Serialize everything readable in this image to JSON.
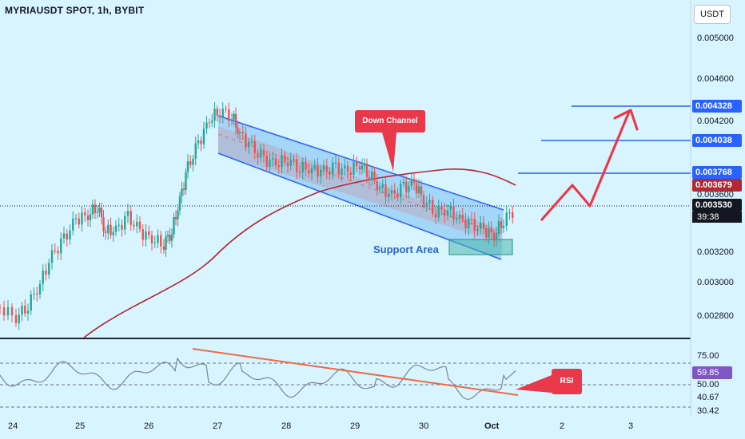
{
  "header": {
    "symbol_title": "MYRIAUSDT SPOT, 1h, BYBIT"
  },
  "price_axis": {
    "unit": "USDT",
    "ticks": [
      "0.005000",
      "0.004600",
      "0.004200",
      "0.003600",
      "0.003200",
      "0.003000",
      "0.002800"
    ],
    "current_price": "0.003530",
    "countdown": "39:38",
    "level_tags": [
      {
        "label": "0.004328",
        "color": "#2962ff"
      },
      {
        "label": "0.004038",
        "color": "#2962ff"
      },
      {
        "label": "0.003768",
        "color": "#2962ff"
      },
      {
        "label": "0.003679",
        "color": "#b22833"
      }
    ]
  },
  "rsi_axis": {
    "ticks": [
      "75.00",
      "50.00",
      "40.67",
      "30.42"
    ],
    "current_value": "59.85"
  },
  "time_axis": {
    "ticks": [
      "24",
      "25",
      "26",
      "27",
      "28",
      "29",
      "30",
      "Oct",
      "2",
      "3"
    ]
  },
  "annotations": {
    "down_channel": "Down Channel",
    "support_area": "Support Area",
    "rsi": "RSI"
  },
  "colors": {
    "background": "#d8f4ff",
    "candle_up": "#26a69a",
    "candle_down": "#ef5350",
    "channel_line": "#2962ff",
    "moving_average": "#b22833",
    "rsi_line": "#7d8791",
    "trendline": "#ef6a43",
    "callout": "#e8384a",
    "projection": "#ef3340"
  }
}
